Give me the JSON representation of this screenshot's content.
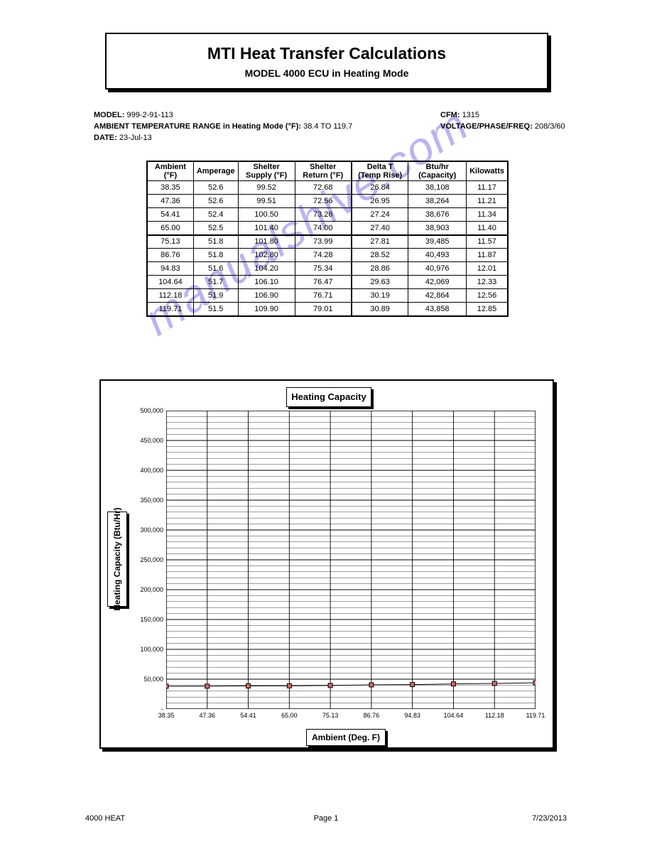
{
  "header": {
    "title": "MTI Heat Transfer Calculations",
    "subtitle": "MODEL 4000 ECU in Heating Mode"
  },
  "info": {
    "model_label": "MODEL:",
    "model": "999-2-91-113",
    "amb_range_label": "AMBIENT TEMPERATURE RANGE in Heating Mode (°F):",
    "amb_low": "38.4",
    "amb_high": "119.7",
    "date_label": "DATE:",
    "date": "23-Jul-13",
    "cfm_label": "CFM:",
    "cfm": "1315",
    "volt_label": "VOLTAGE/PHASE/FREQ:",
    "volt": "208/3/60"
  },
  "table": {
    "headers": [
      "Ambient (°F)",
      "Amperage",
      "Shelter Supply (°F)",
      "Shelter Return (°F)",
      "Delta T (Temp Rise)",
      "Btu/hr (Capacity)",
      "Kilowatts"
    ],
    "rows": [
      [
        "38.35",
        "52.6",
        "99.52",
        "72.68",
        "26.84",
        "38,108",
        "11.17"
      ],
      [
        "47.36",
        "52.6",
        "99.51",
        "72.56",
        "26.95",
        "38,264",
        "11.21"
      ],
      [
        "54.41",
        "52.4",
        "100.50",
        "73.26",
        "27.24",
        "38,676",
        "11.34"
      ],
      [
        "65.00",
        "52.5",
        "101.40",
        "74.00",
        "27.40",
        "38,903",
        "11.40"
      ],
      [
        "75.13",
        "51.8",
        "101.80",
        "73.99",
        "27.81",
        "39,485",
        "11.57"
      ],
      [
        "86.76",
        "51.8",
        "102.80",
        "74.28",
        "28.52",
        "40,493",
        "11.87"
      ],
      [
        "94.83",
        "51.6",
        "104.20",
        "75.34",
        "28.86",
        "40,976",
        "12.01"
      ],
      [
        "104.64",
        "51.7",
        "106.10",
        "76.47",
        "29.63",
        "42,069",
        "12.33"
      ],
      [
        "112.18",
        "51.9",
        "106.90",
        "76.71",
        "30.19",
        "42,864",
        "12.56"
      ],
      [
        "119.71",
        "51.5",
        "109.90",
        "79.01",
        "30.89",
        "43,858",
        "12.85"
      ]
    ]
  },
  "chart": {
    "title": "Heating Capacity",
    "ytitle": "Heating Capacity (Btu/Hr)",
    "xtitle": "Ambient (Deg. F)",
    "xticks": [
      "38.35",
      "47.36",
      "54.41",
      "65.00",
      "75.13",
      "86.76",
      "94.83",
      "104.64",
      "112.18",
      "119.71"
    ],
    "yticks": [
      "-",
      "50,000",
      "100,000",
      "150,000",
      "200,000",
      "250,000",
      "300,000",
      "350,000",
      "400,000",
      "450,000",
      "500,000"
    ],
    "ymin": 0,
    "ymax": 500000,
    "values": [
      38108,
      38264,
      38676,
      38903,
      39485,
      40493,
      40976,
      42069,
      42864,
      43858
    ],
    "line_color": "#000000",
    "marker_border": "#000000",
    "marker_fill": "#d46a6a",
    "marker_size": 6,
    "grid_color": "#000000",
    "grid_width": 0.5,
    "plot_bg": "#ffffff"
  },
  "footer": {
    "left": "4000 HEAT",
    "center": "Page 1",
    "right": "7/23/2013"
  },
  "watermark": "manualshive.com"
}
